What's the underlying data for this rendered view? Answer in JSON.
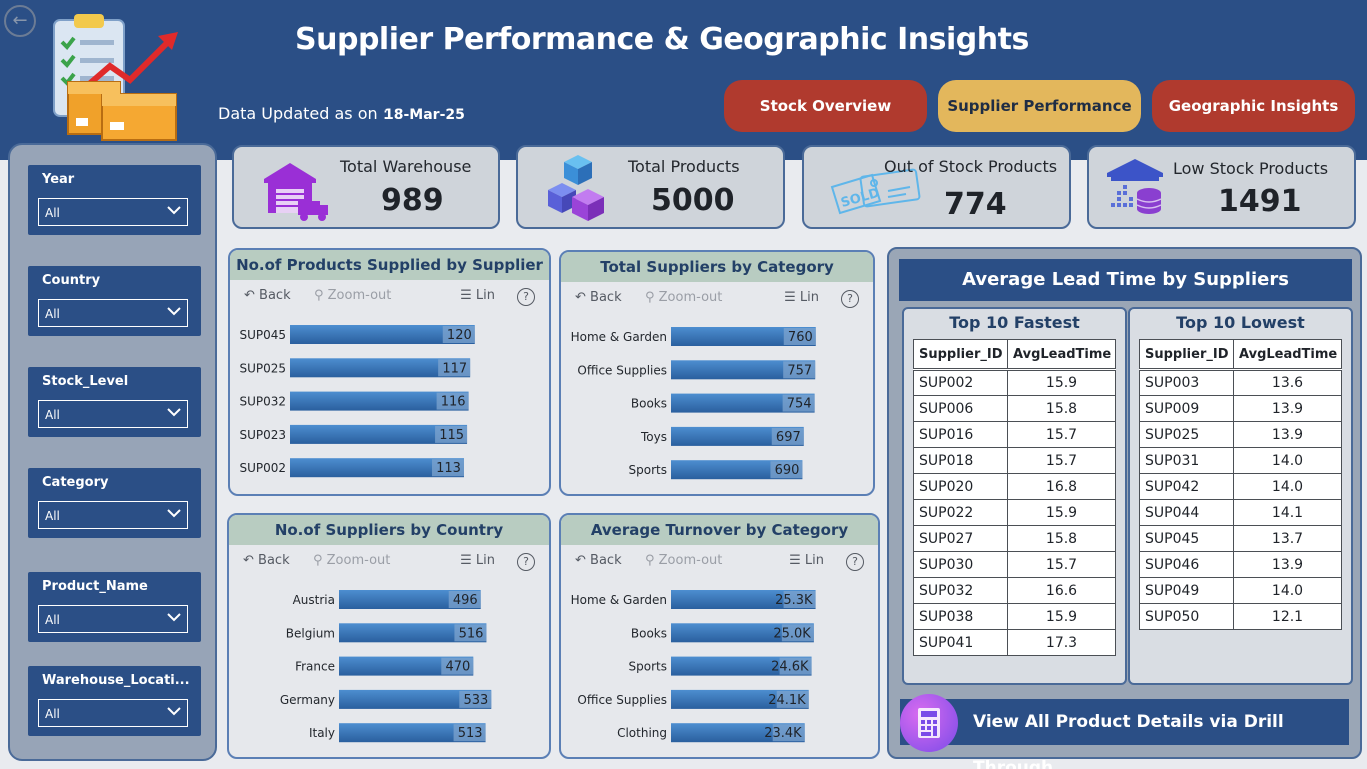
{
  "header": {
    "title": "Supplier Performance & Geographic Insights",
    "updated_label": "Data Updated as on :",
    "updated_value": "18-Mar-25"
  },
  "nav": {
    "stock_overview": "Stock Overview",
    "supplier_performance": "Supplier Performance",
    "geographic_insights": "Geographic Insights"
  },
  "slicers": [
    {
      "label": "Year",
      "value": "All"
    },
    {
      "label": "Country",
      "value": "All"
    },
    {
      "label": "Stock_Level",
      "value": "All"
    },
    {
      "label": "Category",
      "value": "All"
    },
    {
      "label": "Product_Name",
      "value": "All"
    },
    {
      "label": "Warehouse_Locati...",
      "value": "All"
    }
  ],
  "kpis": [
    {
      "label": "Total Warehouse",
      "value": "989",
      "icon": "warehouse-truck-icon"
    },
    {
      "label": "Total Products",
      "value": "5000",
      "icon": "boxes-icon"
    },
    {
      "label": "Out of Stock Products",
      "value": "774",
      "icon": "sold-tag-icon"
    },
    {
      "label": "Low Stock Products",
      "value": "1491",
      "icon": "low-stock-icon"
    }
  ],
  "toolbar": {
    "back": "Back",
    "zoom_out": "Zoom-out",
    "lin": "Lin",
    "help": "?"
  },
  "chart_data": [
    {
      "type": "bar",
      "title": "No.of Products Supplied by Supplier",
      "categories": [
        "SUP045",
        "SUP025",
        "SUP032",
        "SUP023",
        "SUP002"
      ],
      "values": [
        120,
        117,
        116,
        115,
        113
      ],
      "labels": [
        "120",
        "117",
        "116",
        "115",
        "113"
      ],
      "xlim": [
        0,
        126
      ]
    },
    {
      "type": "bar",
      "title": "Total Suppliers by Category",
      "categories": [
        "Home & Garden",
        "Office Supplies",
        "Books",
        "Toys",
        "Sports"
      ],
      "values": [
        760,
        757,
        754,
        697,
        690
      ],
      "labels": [
        "760",
        "757",
        "754",
        "697",
        "690"
      ],
      "xlim": [
        0,
        798
      ]
    },
    {
      "type": "bar",
      "title": "No.of Suppliers by Country",
      "categories": [
        "Austria",
        "Belgium",
        "France",
        "Germany",
        "Italy"
      ],
      "values": [
        496,
        516,
        470,
        533,
        513
      ],
      "labels": [
        "496",
        "516",
        "470",
        "533",
        "513"
      ],
      "xlim": [
        0,
        560
      ]
    },
    {
      "type": "bar",
      "title": "Average Turnover by Category",
      "categories": [
        "Home & Garden",
        "Books",
        "Sports",
        "Office Supplies",
        "Clothing"
      ],
      "values": [
        25300,
        25000,
        24600,
        24100,
        23400
      ],
      "labels": [
        "25.3K",
        "25.0K",
        "24.6K",
        "24.1K",
        "23.4K"
      ],
      "xlim": [
        0,
        26600
      ]
    }
  ],
  "lead_time": {
    "title": "Average Lead Time by Suppliers",
    "fastest": {
      "title": "Top 10 Fastest",
      "columns": [
        "Supplier_ID",
        "AvgLeadTime"
      ],
      "rows": [
        [
          "SUP002",
          "15.9"
        ],
        [
          "SUP006",
          "15.8"
        ],
        [
          "SUP016",
          "15.7"
        ],
        [
          "SUP018",
          "15.7"
        ],
        [
          "SUP020",
          "16.8"
        ],
        [
          "SUP022",
          "15.9"
        ],
        [
          "SUP027",
          "15.8"
        ],
        [
          "SUP030",
          "15.7"
        ],
        [
          "SUP032",
          "16.6"
        ],
        [
          "SUP038",
          "15.9"
        ],
        [
          "SUP041",
          "17.3"
        ]
      ]
    },
    "lowest": {
      "title": "Top 10 Lowest",
      "columns": [
        "Supplier_ID",
        "AvgLeadTime"
      ],
      "rows": [
        [
          "SUP003",
          "13.6"
        ],
        [
          "SUP009",
          "13.9"
        ],
        [
          "SUP025",
          "13.9"
        ],
        [
          "SUP031",
          "14.0"
        ],
        [
          "SUP042",
          "14.0"
        ],
        [
          "SUP044",
          "14.1"
        ],
        [
          "SUP045",
          "13.7"
        ],
        [
          "SUP046",
          "13.9"
        ],
        [
          "SUP049",
          "14.0"
        ],
        [
          "SUP050",
          "12.1"
        ]
      ]
    }
  },
  "drill_through": {
    "label": "View All Product Details via Drill Through",
    "icon": "calculator-icon"
  },
  "colors": {
    "header_bg": "#2b4f86",
    "nav_red": "#b03a2e",
    "nav_gold": "#e3b75c",
    "bar": "#3a74b8",
    "card_title_bg": "#b8ccc1"
  }
}
